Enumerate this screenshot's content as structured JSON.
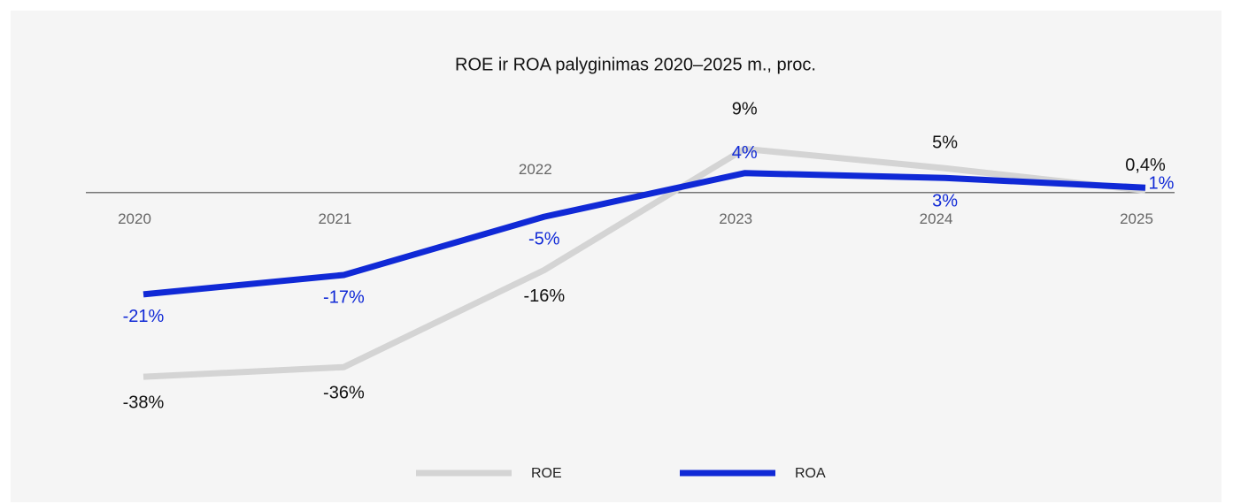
{
  "chart_data": {
    "type": "line",
    "title": "ROE ir ROA palyginimas 2020–2025 m., proc.",
    "categories": [
      "2020",
      "2021",
      "2022",
      "2023",
      "2024",
      "2025"
    ],
    "series": [
      {
        "name": "ROE",
        "color": "#d4d4d4",
        "values": [
          -38,
          -36,
          -16,
          9,
          5,
          0.4
        ],
        "value_labels": [
          "-38%",
          "-36%",
          "-16%",
          "9%",
          "5%",
          "0,4%"
        ]
      },
      {
        "name": "ROA",
        "color": "#1029d6",
        "values": [
          -21,
          -17,
          -5,
          4,
          3,
          1
        ],
        "value_labels": [
          "-21%",
          "-17%",
          "-5%",
          "4%",
          "3%",
          "1%"
        ]
      }
    ],
    "ylim": [
      -50,
      20
    ],
    "legend": "bottom"
  }
}
